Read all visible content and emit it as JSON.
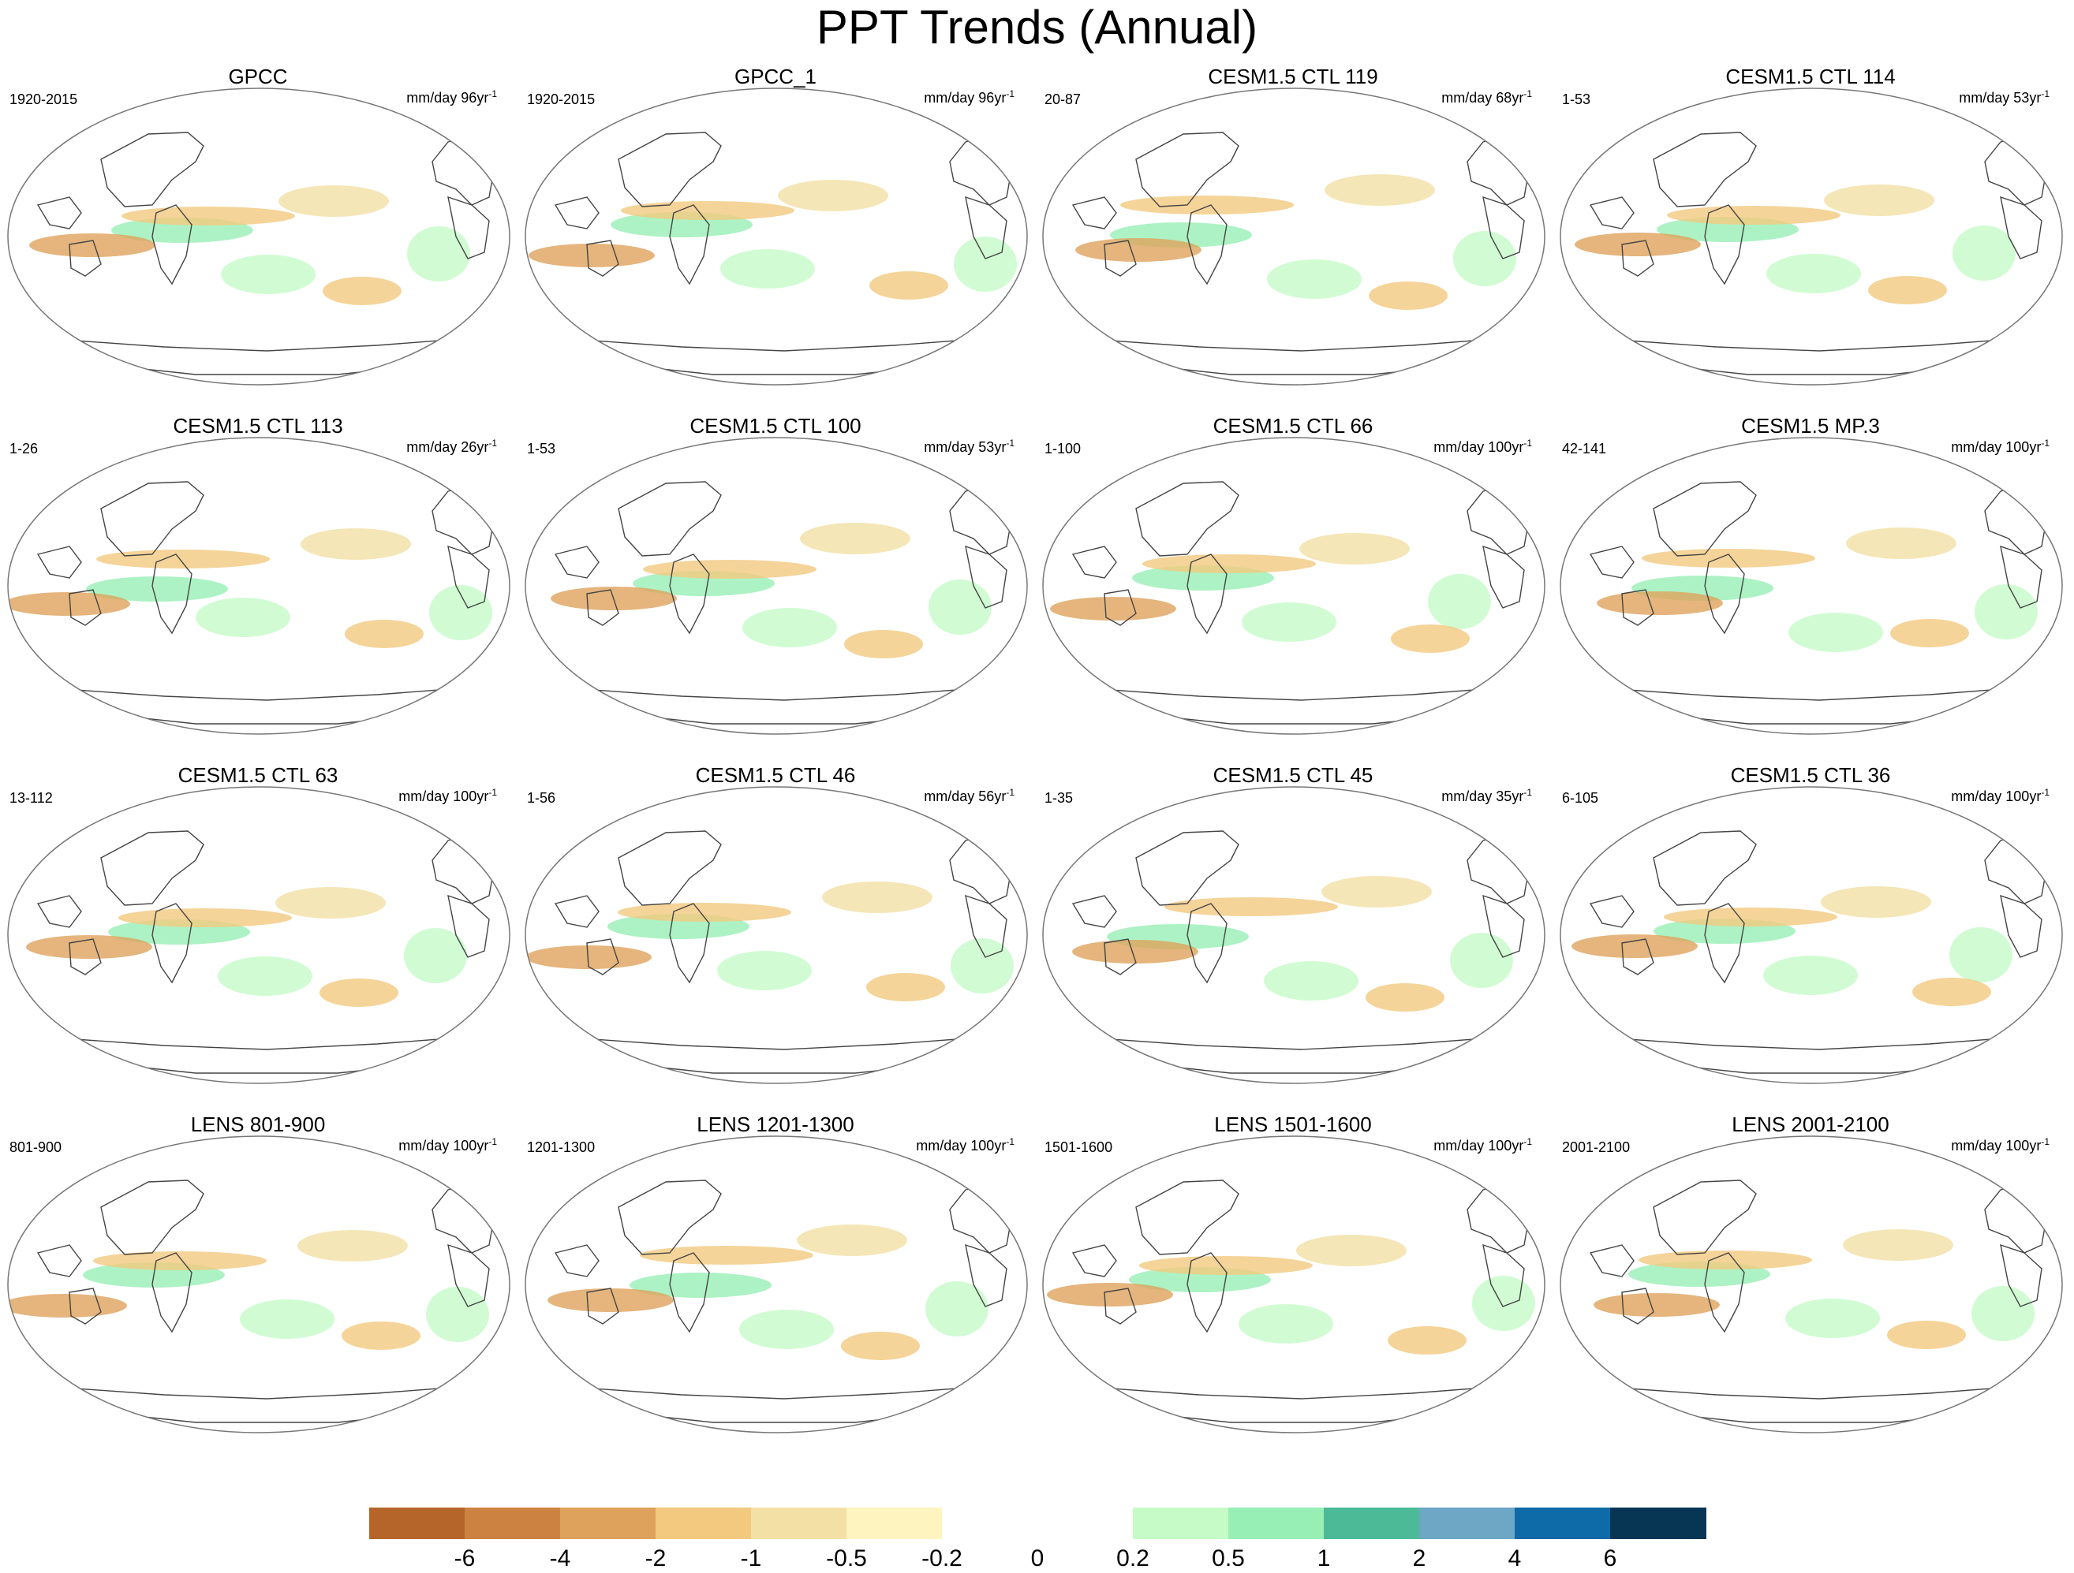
{
  "title": "PPT Trends (Annual)",
  "units_prefix": "mm/day ",
  "units_suffix": "yr",
  "units_exponent": "-1",
  "panels": [
    {
      "name": "GPCC",
      "years": "1920-2015",
      "span": "96"
    },
    {
      "name": "GPCC_1",
      "years": "1920-2015",
      "span": "96"
    },
    {
      "name": "CESM1.5 CTL 119",
      "years": "20-87",
      "span": "68"
    },
    {
      "name": "CESM1.5 CTL 114",
      "years": "1-53",
      "span": "53"
    },
    {
      "name": "CESM1.5 CTL 113",
      "years": "1-26",
      "span": "26"
    },
    {
      "name": "CESM1.5 CTL 100",
      "years": "1-53",
      "span": "53"
    },
    {
      "name": "CESM1.5 CTL 66",
      "years": "1-100",
      "span": "100"
    },
    {
      "name": "CESM1.5 MP.3",
      "years": "42-141",
      "span": "100"
    },
    {
      "name": "CESM1.5 CTL 63",
      "years": "13-112",
      "span": "100"
    },
    {
      "name": "CESM1.5 CTL 46",
      "years": "1-56",
      "span": "56"
    },
    {
      "name": "CESM1.5 CTL 45",
      "years": "1-35",
      "span": "35"
    },
    {
      "name": "CESM1.5 CTL 36",
      "years": "6-105",
      "span": "100"
    },
    {
      "name": "LENS 801-900",
      "years": "801-900",
      "span": "100"
    },
    {
      "name": "LENS 1201-1300",
      "years": "1201-1300",
      "span": "100"
    },
    {
      "name": "LENS 1501-1600",
      "years": "1501-1600",
      "span": "100"
    },
    {
      "name": "LENS 2001-2100",
      "years": "2001-2100",
      "span": "100"
    }
  ],
  "colorbar": {
    "colors": [
      "#b5652a",
      "#cc8341",
      "#dfa25c",
      "#f2c97f",
      "#f3e0a5",
      "#fdf4c0",
      "#ffffff",
      "#ffffff",
      "#c6fbc8",
      "#98efb5",
      "#4dba97",
      "#6ea6c6",
      "#0f6aa8",
      "#073655"
    ],
    "labels": [
      "-6",
      "-4",
      "-2",
      "-1",
      "-0.5",
      "-0.2",
      "0",
      "0.2",
      "0.5",
      "1",
      "2",
      "4",
      "6"
    ]
  }
}
